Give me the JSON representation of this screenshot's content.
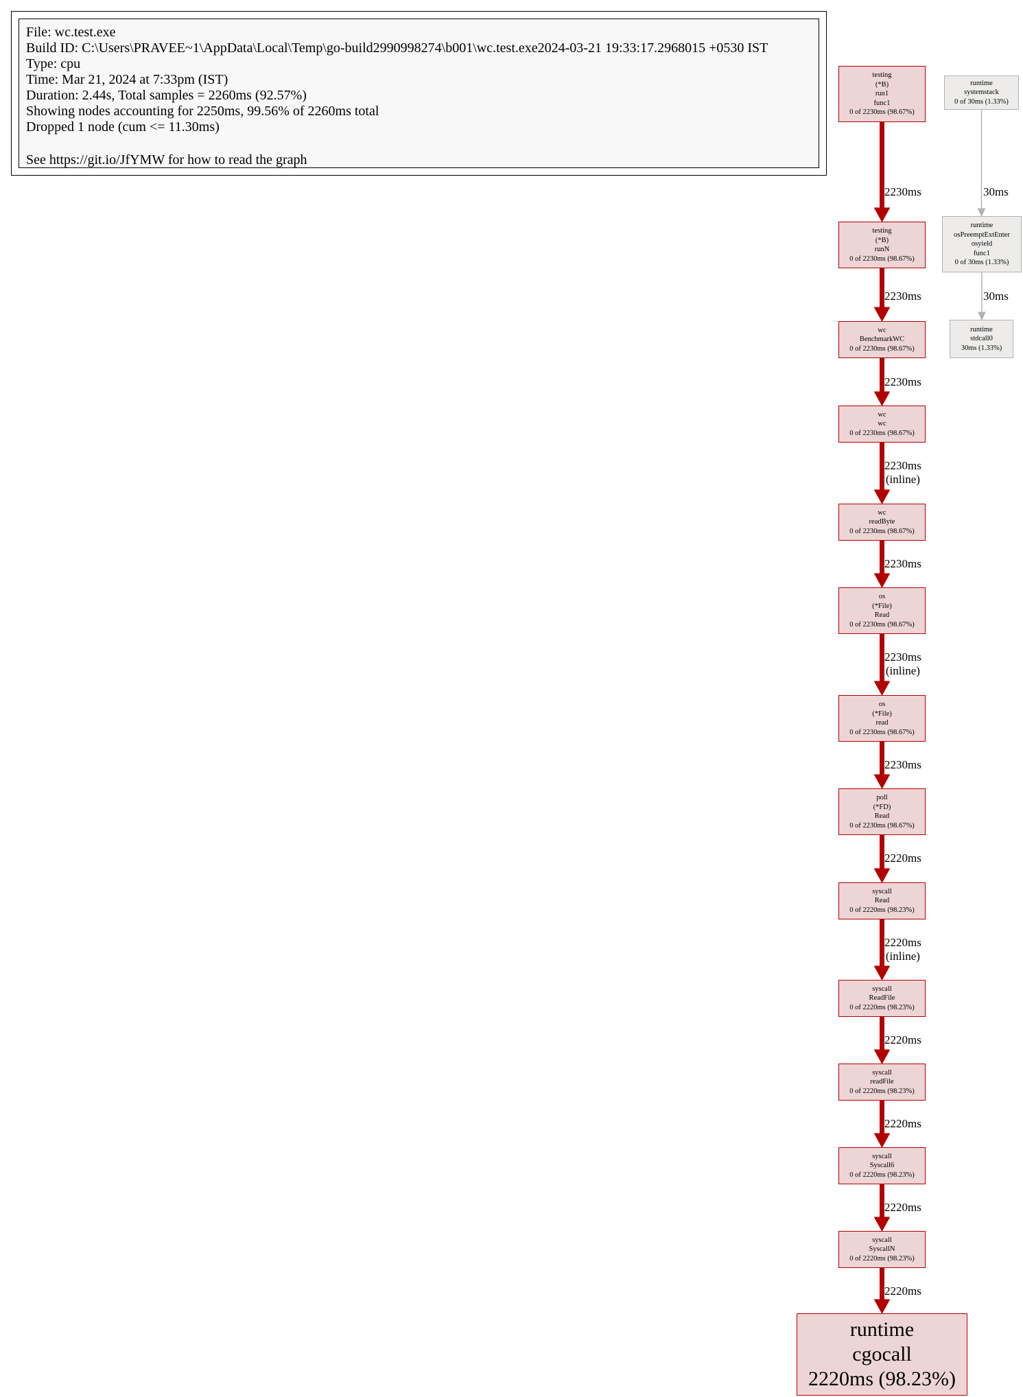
{
  "legend": {
    "lines": [
      "File: wc.test.exe",
      "Build ID: C:\\Users\\PRAVEE~1\\AppData\\Local\\Temp\\go-build2990998274\\b001\\wc.test.exe2024-03-21 19:33:17.2968015 +0530 IST",
      "Type: cpu",
      "Time: Mar 21, 2024 at 7:33pm (IST)",
      "Duration: 2.44s, Total samples = 2260ms (92.57%)",
      "Showing nodes accounting for 2250ms, 99.56% of 2260ms total",
      "Dropped 1 node (cum <= 11.30ms)"
    ],
    "footer": "See https://git.io/JfYMW for how to read the graph"
  },
  "nodes": [
    {
      "lines": [
        "testing",
        "(*B)",
        "run1",
        "func1",
        "0 of 2230ms (98.67%)"
      ]
    },
    {
      "lines": [
        "testing",
        "(*B)",
        "runN",
        "0 of 2230ms (98.67%)"
      ]
    },
    {
      "lines": [
        "wc",
        "BenchmarkWC",
        "0 of 2230ms (98.67%)"
      ]
    },
    {
      "lines": [
        "wc",
        "wc",
        "0 of 2230ms (98.67%)"
      ]
    },
    {
      "lines": [
        "wc",
        "readByte",
        "0 of 2230ms (98.67%)"
      ]
    },
    {
      "lines": [
        "os",
        "(*File)",
        "Read",
        "0 of 2230ms (98.67%)"
      ]
    },
    {
      "lines": [
        "os",
        "(*File)",
        "read",
        "0 of 2230ms (98.67%)"
      ]
    },
    {
      "lines": [
        "poll",
        "(*FD)",
        "Read",
        "0 of 2230ms (98.67%)"
      ]
    },
    {
      "lines": [
        "syscall",
        "Read",
        "0 of 2220ms (98.23%)"
      ]
    },
    {
      "lines": [
        "syscall",
        "ReadFile",
        "0 of 2220ms (98.23%)"
      ]
    },
    {
      "lines": [
        "syscall",
        "readFile",
        "0 of 2220ms (98.23%)"
      ]
    },
    {
      "lines": [
        "syscall",
        "Syscall6",
        "0 of 2220ms (98.23%)"
      ]
    },
    {
      "lines": [
        "syscall",
        "SyscallN",
        "0 of 2220ms (98.23%)"
      ]
    },
    {
      "lines": [
        "runtime",
        "cgocall",
        "2220ms (98.23%)"
      ]
    },
    {
      "lines": [
        "runtime",
        "systemstack",
        "0 of 30ms (1.33%)"
      ]
    },
    {
      "lines": [
        "runtime",
        "osPreemptExtEnter",
        "osyield",
        "func1",
        "0 of 30ms (1.33%)"
      ]
    },
    {
      "lines": [
        "runtime",
        "stdcall0",
        "30ms (1.33%)"
      ]
    }
  ],
  "edges": [
    {
      "lines": [
        "2230ms"
      ]
    },
    {
      "lines": [
        "2230ms"
      ]
    },
    {
      "lines": [
        "2230ms"
      ]
    },
    {
      "lines": [
        "2230ms",
        "(inline)"
      ]
    },
    {
      "lines": [
        "2230ms"
      ]
    },
    {
      "lines": [
        "2230ms",
        "(inline)"
      ]
    },
    {
      "lines": [
        "2230ms"
      ]
    },
    {
      "lines": [
        "2220ms"
      ]
    },
    {
      "lines": [
        "2220ms",
        "(inline)"
      ]
    },
    {
      "lines": [
        "2220ms"
      ]
    },
    {
      "lines": [
        "2220ms"
      ]
    },
    {
      "lines": [
        "2220ms"
      ]
    },
    {
      "lines": [
        "2220ms"
      ]
    },
    {
      "lines": [
        "30ms"
      ]
    },
    {
      "lines": [
        "30ms"
      ]
    }
  ],
  "colors": {
    "hot_edge": "#b20000",
    "hot_node_fill": "#edd5d5",
    "cold_edge": "#b2b2b2",
    "cold_node_fill": "#edeceb"
  }
}
